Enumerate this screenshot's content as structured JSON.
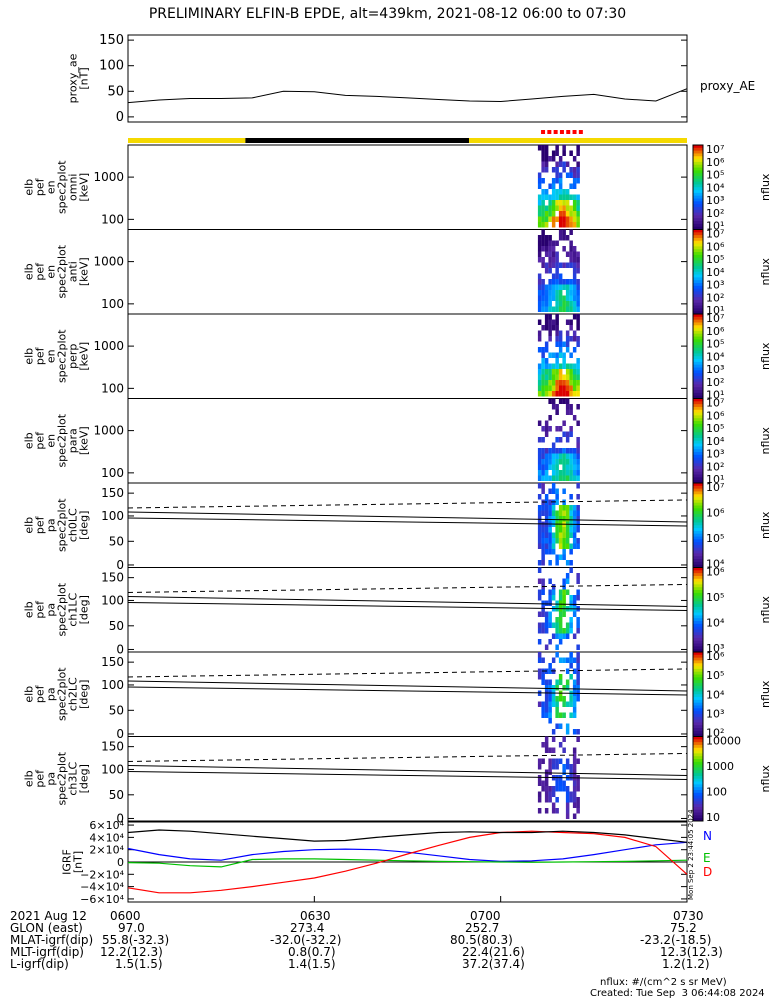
{
  "title": "PRELIMINARY ELFIN-B EPDE, alt=439km, 2021-08-12 06:00 to 07:30",
  "colors": {
    "yellow": "#f5d900",
    "black": "#000000",
    "red": "#ff0000",
    "blue": "#0000ff",
    "green": "#00c000"
  },
  "chart_data": [
    {
      "type": "line",
      "id": "proxy_ae",
      "ylabel": "proxy_ae\n[nT]",
      "legend": "proxy_AE",
      "yticks": [
        "150",
        "100",
        "50",
        "0"
      ],
      "ylim": [
        -10,
        160
      ],
      "x_minutes": [
        0,
        5,
        10,
        15,
        20,
        25,
        30,
        35,
        40,
        45,
        50,
        55,
        60,
        65,
        70,
        75,
        80,
        85,
        90
      ],
      "values": [
        28,
        33,
        36,
        36,
        37,
        50,
        49,
        42,
        40,
        37,
        34,
        31,
        30,
        35,
        40,
        44,
        35,
        31,
        55
      ]
    },
    {
      "type": "bar",
      "id": "orbit_bar",
      "segments": [
        {
          "from": 0,
          "to": 21,
          "color": "yellow"
        },
        {
          "from": 21,
          "to": 61,
          "color": "black"
        },
        {
          "from": 61,
          "to": 100,
          "color": "yellow"
        }
      ],
      "science_marks": "red dashes over science zone"
    },
    {
      "type": "heatmap",
      "id": "elb_pef_en_omni",
      "ylabel": "elb\npef\nen\nspec2plot\nomni\n[keV]",
      "yticks": [
        "1000",
        "100"
      ],
      "colorbar_label": "nflux",
      "cbar_ticks": [
        "10⁷",
        "10⁶",
        "10⁵",
        "10⁴",
        "10³",
        "10²",
        "10¹"
      ],
      "x_range_minutes": [
        66,
        73
      ]
    },
    {
      "type": "heatmap",
      "id": "elb_pef_en_anti",
      "ylabel": "elb\npef\nen\nspec2plot\nanti\n[keV]",
      "yticks": [
        "1000",
        "100"
      ],
      "colorbar_label": "nflux",
      "cbar_ticks": [
        "10⁷",
        "10⁶",
        "10⁵",
        "10⁴",
        "10³",
        "10²",
        "10¹"
      ],
      "x_range_minutes": [
        66,
        73
      ]
    },
    {
      "type": "heatmap",
      "id": "elb_pef_en_perp",
      "ylabel": "elb\npef\nen\nspec2plot\nperp\n[keV]",
      "yticks": [
        "1000",
        "100"
      ],
      "colorbar_label": "nflux",
      "cbar_ticks": [
        "10⁷",
        "10⁶",
        "10⁵",
        "10⁴",
        "10³",
        "10²",
        "10¹"
      ],
      "x_range_minutes": [
        66,
        73
      ]
    },
    {
      "type": "heatmap",
      "id": "elb_pef_en_para",
      "ylabel": "elb\npef\nen\nspec2plot\npara\n[keV]",
      "yticks": [
        "1000",
        "100"
      ],
      "colorbar_label": "nflux",
      "cbar_ticks": [
        "10⁷",
        "10⁶",
        "10⁵",
        "10⁴",
        "10³",
        "10²",
        "10¹"
      ],
      "x_range_minutes": [
        66,
        73
      ]
    },
    {
      "type": "heatmap",
      "id": "elb_pef_pa_ch0LC",
      "ylabel": "elb\npef\npa\nspec2plot\nch0LC\n[deg]",
      "yticks": [
        "150",
        "100",
        "50",
        "0"
      ],
      "colorbar_label": "nflux",
      "cbar_ticks": [
        "10⁷",
        "10⁶",
        "10⁵",
        "10⁴"
      ],
      "x_range_minutes": [
        66,
        73
      ]
    },
    {
      "type": "heatmap",
      "id": "elb_pef_pa_ch1LC",
      "ylabel": "elb\npef\npa\nspec2plot\nch1LC\n[deg]",
      "yticks": [
        "150",
        "100",
        "50",
        "0"
      ],
      "colorbar_label": "nflux",
      "cbar_ticks": [
        "10⁶",
        "10⁵",
        "10⁴",
        "10³"
      ],
      "x_range_minutes": [
        66,
        73
      ]
    },
    {
      "type": "heatmap",
      "id": "elb_pef_pa_ch2LC",
      "ylabel": "elb\npef\npa\nspec2plot\nch2LC\n[deg]",
      "yticks": [
        "150",
        "100",
        "50",
        "0"
      ],
      "colorbar_label": "nflux",
      "cbar_ticks": [
        "10⁶",
        "10⁵",
        "10⁴",
        "10³",
        "10²"
      ],
      "x_range_minutes": [
        66,
        73
      ]
    },
    {
      "type": "heatmap",
      "id": "elb_pef_pa_ch3LC",
      "ylabel": "elb\npef\npa\nspec2plot\nch3LC\n[deg]",
      "yticks": [
        "150",
        "100",
        "50",
        "0"
      ],
      "colorbar_label": "nflux",
      "cbar_ticks": [
        "10000",
        "1000",
        "100",
        "10"
      ],
      "x_range_minutes": [
        66,
        73
      ]
    },
    {
      "type": "line",
      "id": "igrf",
      "ylabel": "IGRF\n[nT]",
      "yticks": [
        "6×10⁴",
        "4×10⁴",
        "2×10⁴",
        "0",
        "−2×10⁴",
        "−4×10⁴",
        "−6×10⁴"
      ],
      "ylim": [
        -65000,
        65000
      ],
      "x_minutes": [
        0,
        5,
        10,
        15,
        20,
        25,
        30,
        35,
        40,
        45,
        50,
        55,
        60,
        65,
        70,
        75,
        80,
        85,
        90
      ],
      "series": [
        {
          "name": "N",
          "color": "blue",
          "values": [
            22000,
            12000,
            5000,
            3000,
            12000,
            17000,
            20000,
            21000,
            20000,
            16000,
            10000,
            4000,
            1000,
            2000,
            5000,
            12000,
            20000,
            28000,
            32000
          ]
        },
        {
          "name": "E",
          "color": "green",
          "values": [
            -1000,
            -2000,
            -6000,
            -8000,
            4000,
            5000,
            5000,
            4000,
            3000,
            2000,
            1000,
            500,
            0,
            -500,
            0,
            500,
            1000,
            2000,
            3000
          ]
        },
        {
          "name": "D",
          "color": "red",
          "values": [
            -42000,
            -50000,
            -50000,
            -46000,
            -40000,
            -33000,
            -26000,
            -15000,
            -2000,
            13000,
            27000,
            40000,
            48000,
            50000,
            48000,
            46000,
            40000,
            25000,
            -20000
          ]
        },
        {
          "name": "",
          "color": "black",
          "values": [
            48000,
            52000,
            50000,
            46000,
            42000,
            38000,
            34000,
            35000,
            40000,
            44000,
            48000,
            49000,
            48000,
            48000,
            50000,
            48000,
            44000,
            38000,
            32000
          ]
        }
      ]
    }
  ],
  "side_stamp": "Mon Sep 2 23:44:05 2024",
  "footer": {
    "rows": [
      {
        "label": "2021 Aug 12",
        "values": [
          "0600",
          "0630",
          "0700",
          "0730"
        ]
      },
      {
        "label": "GLON (east)",
        "values": [
          "97.0",
          "273.4",
          "252.7",
          "75.2"
        ]
      },
      {
        "label": "MLAT-igrf(dip)",
        "values": [
          "55.8(-32.3)",
          "-32.0(-32.2)",
          "80.5(80.3)",
          "-23.2(-18.5)"
        ]
      },
      {
        "label": "MLT-igrf(dip)",
        "values": [
          "12.2(12.3)",
          "0.8(0.7)",
          "22.4(21.6)",
          "12.3(12.3)"
        ]
      },
      {
        "label": "L-igrf(dip)",
        "values": [
          "1.5(1.5)",
          "1.4(1.5)",
          "37.2(37.4)",
          "1.2(1.2)"
        ]
      }
    ],
    "units": "nflux: #/(cm^2 s sr MeV)",
    "created": "Created: Tue Sep  3 06:44:08 2024"
  }
}
